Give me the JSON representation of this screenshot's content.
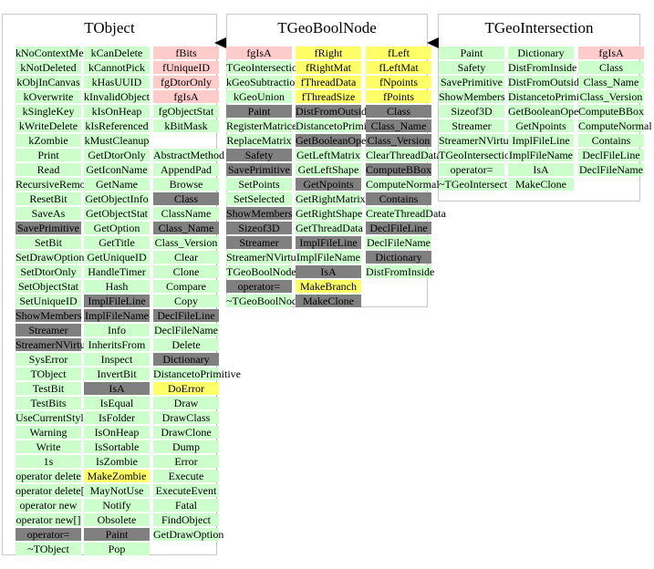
{
  "colors": {
    "c0": "#ccffcc",
    "c1": "#ffcccc",
    "c2": "#ffff66",
    "c3": "#808080"
  },
  "classes": [
    {
      "title": "TObject",
      "columns": [
        [
          [
            "kNoContextMenu",
            0
          ],
          [
            "kNotDeleted",
            0
          ],
          [
            "kObjInCanvas",
            0
          ],
          [
            "kOverwrite",
            0
          ],
          [
            "kSingleKey",
            0
          ],
          [
            "kWriteDelete",
            0
          ],
          [
            "kZombie",
            0
          ],
          [
            "Print",
            0
          ],
          [
            "Read",
            0
          ],
          [
            "RecursiveRemove",
            0
          ],
          [
            "ResetBit",
            0
          ],
          [
            "SaveAs",
            0
          ],
          [
            "SavePrimitive",
            3
          ],
          [
            "SetBit",
            0
          ],
          [
            "SetDrawOption",
            0
          ],
          [
            "SetDtorOnly",
            0
          ],
          [
            "SetObjectStat",
            0
          ],
          [
            "SetUniqueID",
            0
          ],
          [
            "ShowMembers",
            3
          ],
          [
            "Streamer",
            3
          ],
          [
            "StreamerNVirtual",
            3
          ],
          [
            "SysError",
            0
          ],
          [
            "TObject",
            0
          ],
          [
            "TestBit",
            0
          ],
          [
            "TestBits",
            0
          ],
          [
            "UseCurrentStyle",
            0
          ],
          [
            "Warning",
            0
          ],
          [
            "Write",
            0
          ],
          [
            "1s",
            0
          ],
          [
            "operator delete",
            0
          ],
          [
            "operator delete[]",
            0
          ],
          [
            "operator new",
            0
          ],
          [
            "operator new[]",
            0
          ],
          [
            "operator=",
            3
          ],
          [
            "~TObject",
            0
          ]
        ],
        [
          [
            "kCanDelete",
            0
          ],
          [
            "kCannotPick",
            0
          ],
          [
            "kHasUUID",
            0
          ],
          [
            "kInvalidObject",
            0
          ],
          [
            "kIsOnHeap",
            0
          ],
          [
            "kIsReferenced",
            0
          ],
          [
            "kMustCleanup",
            0
          ],
          [
            "GetDtorOnly",
            0
          ],
          [
            "GetIconName",
            0
          ],
          [
            "GetName",
            0
          ],
          [
            "GetObjectInfo",
            0
          ],
          [
            "GetObjectStat",
            0
          ],
          [
            "GetOption",
            0
          ],
          [
            "GetTitle",
            0
          ],
          [
            "GetUniqueID",
            0
          ],
          [
            "HandleTimer",
            0
          ],
          [
            "Hash",
            0
          ],
          [
            "ImplFileLine",
            3
          ],
          [
            "ImplFileName",
            3
          ],
          [
            "Info",
            0
          ],
          [
            "InheritsFrom",
            0
          ],
          [
            "Inspect",
            0
          ],
          [
            "InvertBit",
            0
          ],
          [
            "IsA",
            3
          ],
          [
            "IsEqual",
            0
          ],
          [
            "IsFolder",
            0
          ],
          [
            "IsOnHeap",
            0
          ],
          [
            "IsSortable",
            0
          ],
          [
            "IsZombie",
            0
          ],
          [
            "MakeZombie",
            2
          ],
          [
            "MayNotUse",
            0
          ],
          [
            "Notify",
            0
          ],
          [
            "Obsolete",
            0
          ],
          [
            "Paint",
            3
          ],
          [
            "Pop",
            0
          ]
        ],
        [
          [
            "fBits",
            1
          ],
          [
            "fUniqueID",
            1
          ],
          [
            "fgDtorOnly",
            1
          ],
          [
            "fgIsA",
            1
          ],
          [
            "fgObjectStat",
            0
          ],
          [
            "kBitMask",
            0
          ],
          [
            "",
            -1
          ],
          [
            "AbstractMethod",
            0
          ],
          [
            "AppendPad",
            0
          ],
          [
            "Browse",
            0
          ],
          [
            "Class",
            3
          ],
          [
            "ClassName",
            0
          ],
          [
            "Class_Name",
            3
          ],
          [
            "Class_Version",
            0
          ],
          [
            "Clear",
            0
          ],
          [
            "Clone",
            0
          ],
          [
            "Compare",
            0
          ],
          [
            "Copy",
            0
          ],
          [
            "DeclFileLine",
            3
          ],
          [
            "DeclFileName",
            0
          ],
          [
            "Delete",
            0
          ],
          [
            "Dictionary",
            3
          ],
          [
            "DistancetoPrimitive",
            0
          ],
          [
            "DoError",
            2
          ],
          [
            "Draw",
            0
          ],
          [
            "DrawClass",
            0
          ],
          [
            "DrawClone",
            0
          ],
          [
            "Dump",
            0
          ],
          [
            "Error",
            0
          ],
          [
            "Execute",
            0
          ],
          [
            "ExecuteEvent",
            0
          ],
          [
            "Fatal",
            0
          ],
          [
            "FindObject",
            0
          ],
          [
            "GetDrawOption",
            0
          ]
        ]
      ]
    },
    {
      "title": "TGeoBoolNode",
      "columns": [
        [
          [
            "fgIsA",
            1
          ],
          [
            "TGeoIntersection",
            0
          ],
          [
            "kGeoSubtraction",
            0
          ],
          [
            "kGeoUnion",
            0
          ],
          [
            "Paint",
            3
          ],
          [
            "RegisterMatrices",
            0
          ],
          [
            "ReplaceMatrix",
            0
          ],
          [
            "Safety",
            3
          ],
          [
            "SavePrimitive",
            3
          ],
          [
            "SetPoints",
            0
          ],
          [
            "SetSelected",
            0
          ],
          [
            "ShowMembers",
            3
          ],
          [
            "Sizeof3D",
            3
          ],
          [
            "Streamer",
            3
          ],
          [
            "StreamerNVirtual",
            0
          ],
          [
            "TGeoBoolNode",
            0
          ],
          [
            "operator=",
            3
          ],
          [
            "~TGeoBoolNode",
            0
          ]
        ],
        [
          [
            "fRight",
            2
          ],
          [
            "fRightMat",
            2
          ],
          [
            "fThreadData",
            2
          ],
          [
            "fThreadSize",
            2
          ],
          [
            "DistFromOutside",
            3
          ],
          [
            "DistancetoPrimitive",
            0
          ],
          [
            "GetBooleanOperator",
            3
          ],
          [
            "GetLeftMatrix",
            0
          ],
          [
            "GetLeftShape",
            0
          ],
          [
            "GetNpoints",
            3
          ],
          [
            "GetRightMatrix",
            0
          ],
          [
            "GetRightShape",
            0
          ],
          [
            "GetThreadData",
            0
          ],
          [
            "ImplFileLine",
            3
          ],
          [
            "ImplFileName",
            0
          ],
          [
            "IsA",
            3
          ],
          [
            "MakeBranch",
            2
          ],
          [
            "MakeClone",
            3
          ]
        ],
        [
          [
            "fLeft",
            2
          ],
          [
            "fLeftMat",
            2
          ],
          [
            "fNpoints",
            2
          ],
          [
            "fPoints",
            2
          ],
          [
            "Class",
            3
          ],
          [
            "Class_Name",
            3
          ],
          [
            "Class_Version",
            3
          ],
          [
            "ClearThreadData",
            0
          ],
          [
            "ComputeBBox",
            3
          ],
          [
            "ComputeNormal",
            0
          ],
          [
            "Contains",
            3
          ],
          [
            "CreateThreadData",
            0
          ],
          [
            "DeclFileLine",
            3
          ],
          [
            "DeclFileName",
            0
          ],
          [
            "Dictionary",
            3
          ],
          [
            "DistFromInside",
            0
          ]
        ]
      ]
    },
    {
      "title": "TGeoIntersection",
      "columns": [
        [
          [
            "Paint",
            0
          ],
          [
            "Safety",
            0
          ],
          [
            "SavePrimitive",
            0
          ],
          [
            "ShowMembers",
            0
          ],
          [
            "Sizeof3D",
            0
          ],
          [
            "Streamer",
            0
          ],
          [
            "StreamerNVirtual",
            0
          ],
          [
            "TGeoIntersection",
            0
          ],
          [
            "operator=",
            0
          ],
          [
            "~TGeoIntersection",
            0
          ]
        ],
        [
          [
            "Dictionary",
            0
          ],
          [
            "DistFromInside",
            0
          ],
          [
            "DistFromOutside",
            0
          ],
          [
            "DistancetoPrimitive",
            0
          ],
          [
            "GetBooleanOperator",
            0
          ],
          [
            "GetNpoints",
            0
          ],
          [
            "ImplFileLine",
            0
          ],
          [
            "ImplFileName",
            0
          ],
          [
            "IsA",
            0
          ],
          [
            "MakeClone",
            0
          ]
        ],
        [
          [
            "fgIsA",
            1
          ],
          [
            "Class",
            0
          ],
          [
            "Class_Name",
            0
          ],
          [
            "Class_Version",
            0
          ],
          [
            "ComputeBBox",
            0
          ],
          [
            "ComputeNormal",
            0
          ],
          [
            "Contains",
            0
          ],
          [
            "DeclFileLine",
            0
          ],
          [
            "DeclFileName",
            0
          ]
        ]
      ]
    }
  ]
}
